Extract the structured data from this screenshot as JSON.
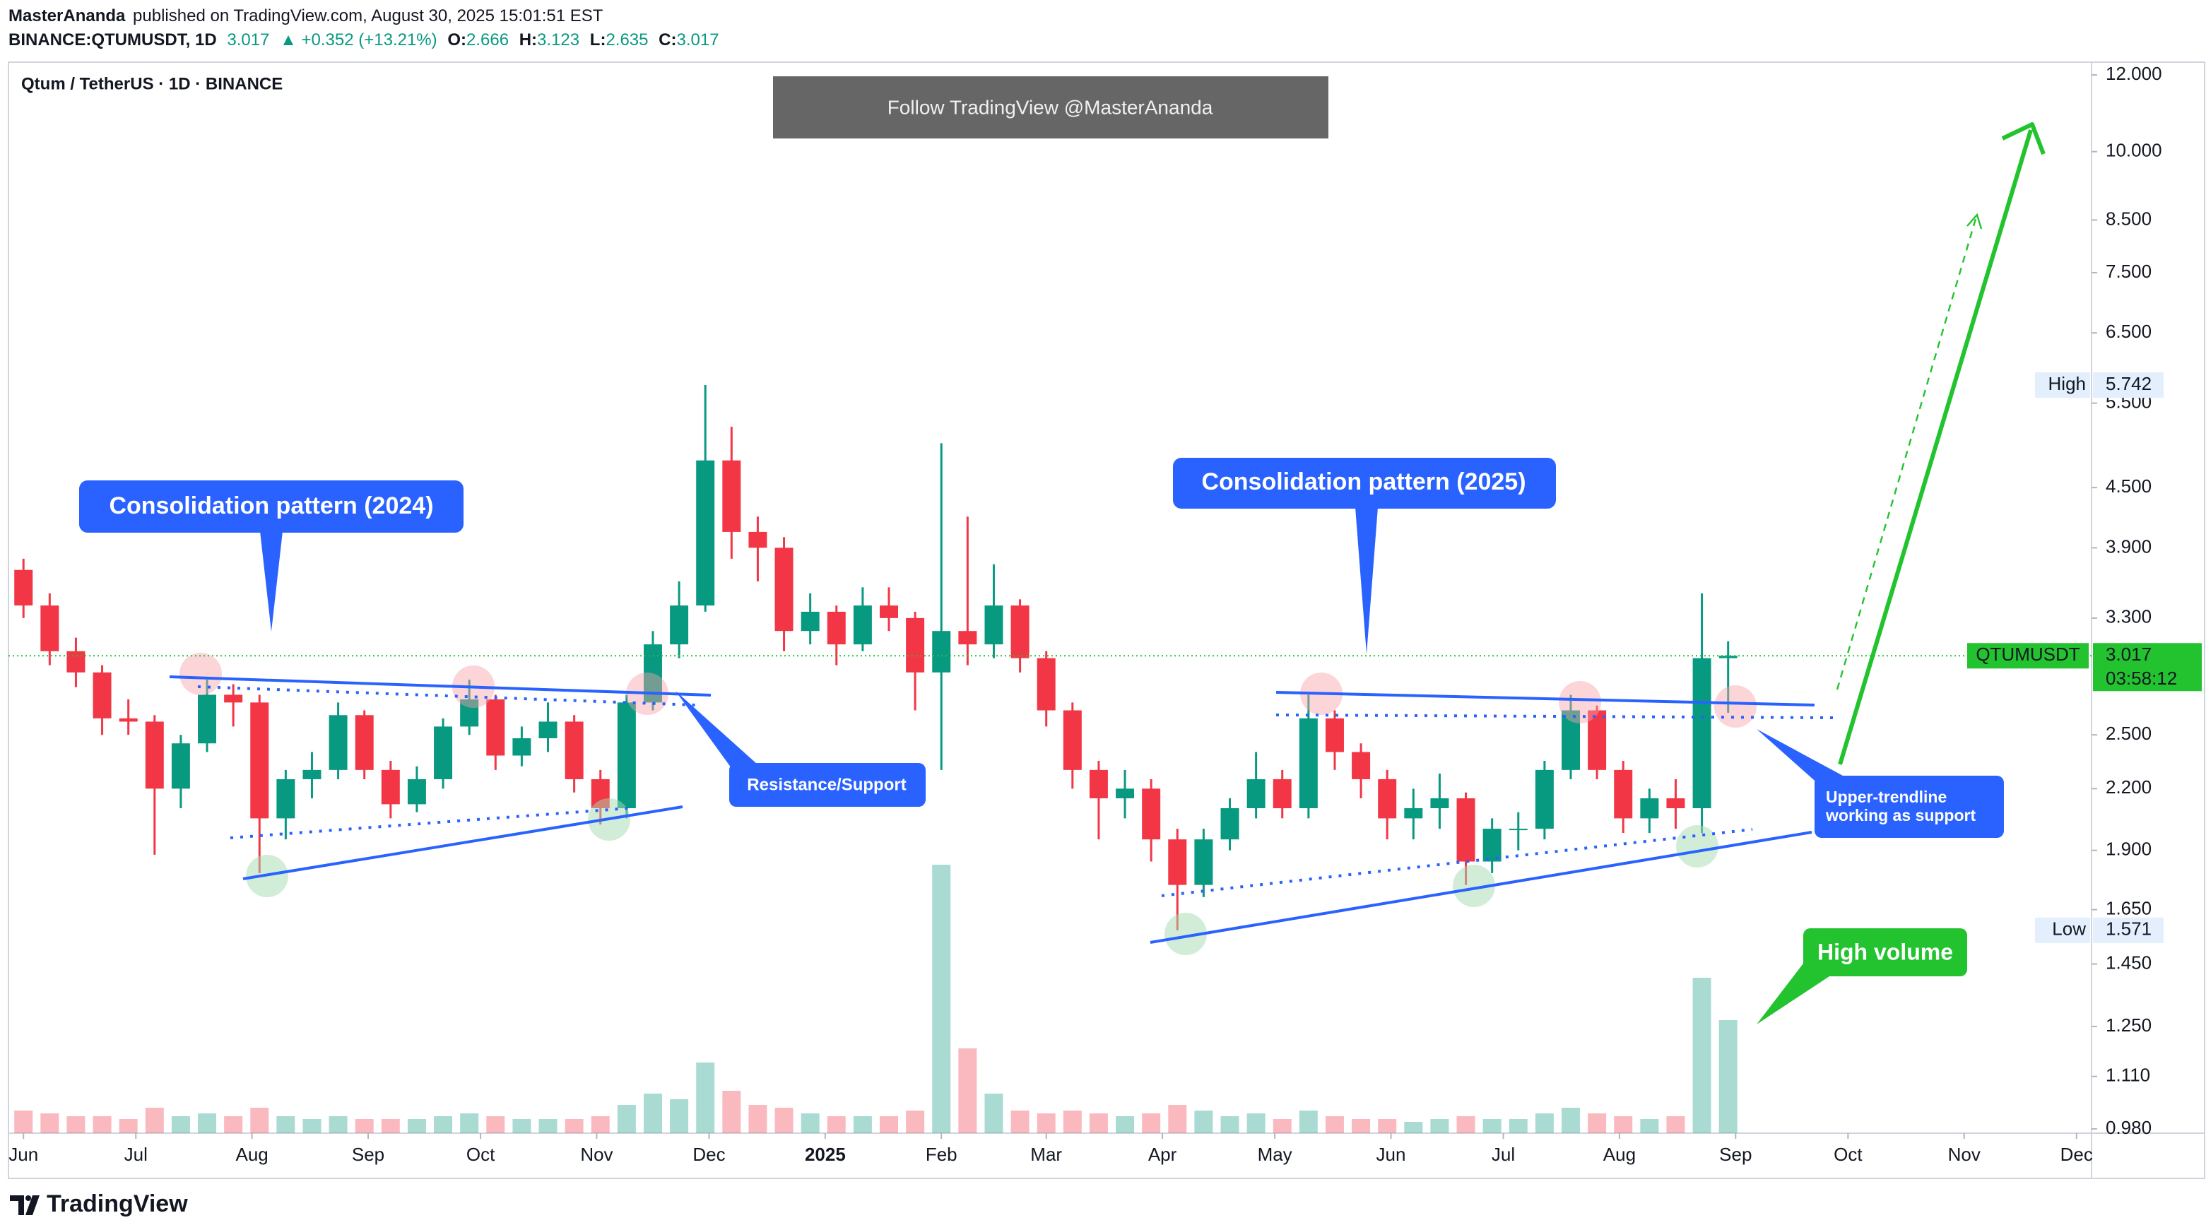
{
  "header": {
    "author": "MasterAnanda",
    "published": "published on TradingView.com, August 30, 2025 15:01:51 EST",
    "symbol": "BINANCE:QTUMUSDT, 1D",
    "last": "3.017",
    "change": "▲ +0.352 (+13.21%)",
    "ohlc": [
      [
        "O:",
        "2.666"
      ],
      [
        "H:",
        "3.123"
      ],
      [
        "L:",
        "2.635"
      ],
      [
        "C:",
        "3.017"
      ]
    ]
  },
  "watermark": "Follow TradingView @MasterAnanda",
  "footer": {
    "logo": "TradingView"
  },
  "chart_data": {
    "type": "candlestick",
    "title": "Qtum / TetherUS · 1D · BINANCE",
    "log_scale": true,
    "grid": false,
    "up_color": "#089981",
    "down_color": "#f23645",
    "xlim": [
      -4,
      552
    ],
    "xticks": [
      {
        "value": 0,
        "label": "Jun"
      },
      {
        "value": 30,
        "label": "Jul"
      },
      {
        "value": 61,
        "label": "Aug"
      },
      {
        "value": 92,
        "label": "Sep"
      },
      {
        "value": 122,
        "label": "Oct"
      },
      {
        "value": 153,
        "label": "Nov"
      },
      {
        "value": 183,
        "label": "Dec"
      },
      {
        "value": 214,
        "label": "2025"
      },
      {
        "value": 245,
        "label": "Feb"
      },
      {
        "value": 273,
        "label": "Mar"
      },
      {
        "value": 304,
        "label": "Apr"
      },
      {
        "value": 334,
        "label": "May"
      },
      {
        "value": 365,
        "label": "Jun"
      },
      {
        "value": 395,
        "label": "Jul"
      },
      {
        "value": 426,
        "label": "Aug"
      },
      {
        "value": 457,
        "label": "Sep"
      },
      {
        "value": 487,
        "label": "Oct"
      },
      {
        "value": 518,
        "label": "Nov"
      },
      {
        "value": 548,
        "label": "Dec"
      }
    ],
    "ylim": [
      0.97,
      12.37
    ],
    "yticks": [
      {
        "value": 12,
        "label": "12.000"
      },
      {
        "value": 10,
        "label": "10.000"
      },
      {
        "value": 8.5,
        "label": "8.500"
      },
      {
        "value": 7.5,
        "label": "7.500"
      },
      {
        "value": 6.5,
        "label": "6.500"
      },
      {
        "value": 5.5,
        "label": "5.500"
      },
      {
        "value": 4.5,
        "label": "4.500"
      },
      {
        "value": 3.9,
        "label": "3.900"
      },
      {
        "value": 3.3,
        "label": "3.300"
      },
      {
        "value": 2.5,
        "label": "2.500"
      },
      {
        "value": 2.2,
        "label": "2.200"
      },
      {
        "value": 1.9,
        "label": "1.900"
      },
      {
        "value": 1.65,
        "label": "1.650"
      },
      {
        "value": 1.45,
        "label": "1.450"
      },
      {
        "value": 1.25,
        "label": "1.250"
      },
      {
        "value": 1.11,
        "label": "1.110"
      },
      {
        "value": 0.98,
        "label": "0.980"
      }
    ],
    "volume_lim": [
      0,
      100
    ],
    "x": [
      0,
      7,
      14,
      21,
      28,
      35,
      42,
      49,
      56,
      63,
      70,
      77,
      84,
      91,
      98,
      105,
      112,
      119,
      126,
      133,
      140,
      147,
      154,
      161,
      168,
      175,
      182,
      189,
      196,
      203,
      210,
      217,
      224,
      231,
      238,
      245,
      252,
      259,
      266,
      273,
      280,
      287,
      294,
      301,
      308,
      315,
      322,
      329,
      336,
      343,
      350,
      357,
      364,
      371,
      378,
      385,
      392,
      399,
      406,
      413,
      420,
      427,
      434,
      441,
      448,
      455
    ],
    "open": [
      3.7,
      3.4,
      3.05,
      2.9,
      2.6,
      2.58,
      2.2,
      2.45,
      2.75,
      2.7,
      2.05,
      2.25,
      2.3,
      2.62,
      2.3,
      2.12,
      2.25,
      2.55,
      2.72,
      2.38,
      2.48,
      2.58,
      2.25,
      2.1,
      2.7,
      3.1,
      3.4,
      4.8,
      4.05,
      3.9,
      3.2,
      3.35,
      3.1,
      3.4,
      3.3,
      2.9,
      3.2,
      3.1,
      3.4,
      3.0,
      2.65,
      2.3,
      2.15,
      2.2,
      1.95,
      1.75,
      1.95,
      2.1,
      2.25,
      2.1,
      2.6,
      2.4,
      2.25,
      2.05,
      2.1,
      2.15,
      1.85,
      2.0,
      2.0,
      2.3,
      2.65,
      2.3,
      2.05,
      2.15,
      2.1,
      3.0
    ],
    "high": [
      3.8,
      3.5,
      3.15,
      2.95,
      2.72,
      2.62,
      2.5,
      2.85,
      2.82,
      2.75,
      2.3,
      2.4,
      2.7,
      2.65,
      2.35,
      2.32,
      2.6,
      2.85,
      2.75,
      2.55,
      2.7,
      2.62,
      2.3,
      2.75,
      3.2,
      3.6,
      5.742,
      5.2,
      4.2,
      4.0,
      3.5,
      3.4,
      3.55,
      3.55,
      3.35,
      5.0,
      4.2,
      3.75,
      3.45,
      3.05,
      2.7,
      2.35,
      2.3,
      2.25,
      2.0,
      2.0,
      2.15,
      2.4,
      2.3,
      2.75,
      2.65,
      2.45,
      2.3,
      2.2,
      2.28,
      2.18,
      2.05,
      2.08,
      2.35,
      2.75,
      2.68,
      2.35,
      2.2,
      2.25,
      3.5,
      3.123
    ],
    "low": [
      3.3,
      2.95,
      2.8,
      2.5,
      2.5,
      1.88,
      2.1,
      2.4,
      2.55,
      1.8,
      1.95,
      2.15,
      2.25,
      2.25,
      2.05,
      2.08,
      2.2,
      2.5,
      2.3,
      2.32,
      2.4,
      2.18,
      2.02,
      2.05,
      2.65,
      3.0,
      3.35,
      3.8,
      3.6,
      3.05,
      3.1,
      2.95,
      3.05,
      3.2,
      2.65,
      2.3,
      2.95,
      3.0,
      2.9,
      2.55,
      2.2,
      1.95,
      2.05,
      1.85,
      1.571,
      1.7,
      1.9,
      2.05,
      2.05,
      2.05,
      2.3,
      2.15,
      1.95,
      1.95,
      2.0,
      1.75,
      1.8,
      1.9,
      1.95,
      2.25,
      2.25,
      1.98,
      1.98,
      2.0,
      1.98,
      2.635
    ],
    "close": [
      3.4,
      3.05,
      2.9,
      2.6,
      2.58,
      2.2,
      2.45,
      2.75,
      2.7,
      2.05,
      2.25,
      2.3,
      2.62,
      2.3,
      2.12,
      2.25,
      2.55,
      2.72,
      2.38,
      2.48,
      2.58,
      2.25,
      2.1,
      2.7,
      3.1,
      3.4,
      4.8,
      4.05,
      3.9,
      3.2,
      3.35,
      3.1,
      3.4,
      3.3,
      2.9,
      3.2,
      3.1,
      3.4,
      3.0,
      2.65,
      2.3,
      2.15,
      2.2,
      1.95,
      1.75,
      1.95,
      2.1,
      2.25,
      2.1,
      2.6,
      2.4,
      2.25,
      2.05,
      2.1,
      2.15,
      1.85,
      2.0,
      2.0,
      2.3,
      2.65,
      2.3,
      2.05,
      2.15,
      2.1,
      3.0,
      3.017
    ],
    "volume": [
      8,
      7,
      6,
      6,
      5,
      9,
      6,
      7,
      6,
      9,
      6,
      5,
      6,
      5,
      5,
      5,
      6,
      7,
      6,
      5,
      5,
      5,
      6,
      10,
      14,
      12,
      25,
      15,
      10,
      9,
      7,
      6,
      6,
      6,
      8,
      95,
      30,
      14,
      8,
      7,
      8,
      7,
      6,
      7,
      10,
      8,
      6,
      7,
      5,
      8,
      6,
      5,
      5,
      4,
      5,
      6,
      5,
      5,
      7,
      9,
      7,
      6,
      5,
      6,
      55,
      40
    ],
    "price_labels": {
      "high": {
        "label": "High",
        "value": 5.742
      },
      "low": {
        "label": "Low",
        "value": 1.571
      },
      "last": {
        "symbol": "QTUMUSDT",
        "value": 3.017,
        "countdown": "03:58:12"
      }
    },
    "annotations": {
      "consolidation_2024": "Consolidation pattern (2024)",
      "consolidation_2025": "Consolidation pattern (2025)",
      "resistance_support": "Resistance/Support",
      "upper_trendline": [
        "Upper-trendline",
        "working as support"
      ],
      "high_volume": "High volume"
    }
  }
}
